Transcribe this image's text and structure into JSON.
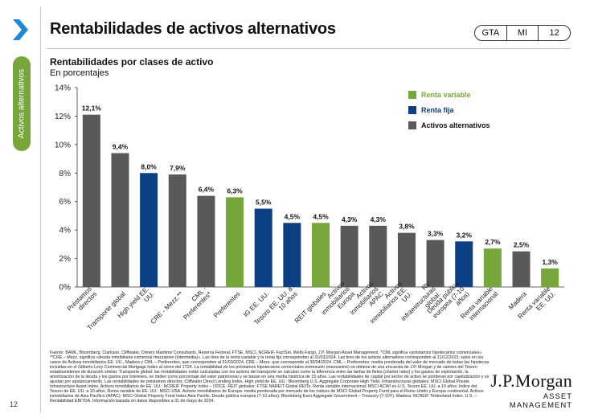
{
  "page": {
    "title": "Rentabilidades de activos alternativos",
    "side_label": "Activos alternativos",
    "page_number": "12",
    "tags": [
      "GTA",
      "MI",
      "12"
    ]
  },
  "chart_data": {
    "type": "bar",
    "title": "Rentabilidades por clases de activo",
    "subtitle": "En porcentajes",
    "ylim": [
      0,
      14
    ],
    "yticks": [
      "0%",
      "2%",
      "4%",
      "6%",
      "8%",
      "10%",
      "12%",
      "14%"
    ],
    "categories": [
      "Préstamos directos",
      "Transporte global",
      "High yield EE. UU.",
      "CRE - Mezz.**",
      "CML - Preferentes*",
      "Preferentes",
      "IG EE. UU.",
      "Tesoro EE. UU. a 10 años",
      "REIT globales",
      "Activos inmobiliarios Europa",
      "Activos inmobiliarios APAC",
      "Activos inmobiliarios EE. UU.",
      "RV infraestructuras global.",
      "Deuda pública europea (7-10 años)",
      "Renta variable internacional",
      "Madera",
      "Renta variable EE. UU."
    ],
    "values": [
      12.1,
      9.4,
      8.0,
      7.9,
      6.4,
      6.3,
      5.5,
      4.5,
      4.5,
      4.3,
      4.3,
      3.8,
      3.3,
      3.2,
      2.7,
      2.5,
      1.3
    ],
    "labels": [
      "12,1%",
      "9,4%",
      "8,0%",
      "7,9%",
      "6,4%",
      "6,3%",
      "5,5%",
      "4,5%",
      "4,5%",
      "4,3%",
      "4,3%",
      "3,8%",
      "3,3%",
      "3,2%",
      "2,7%",
      "2,5%",
      "1,3%"
    ],
    "groups": [
      "alt",
      "alt",
      "fixed",
      "alt",
      "alt",
      "equity",
      "fixed",
      "fixed",
      "equity",
      "alt",
      "alt",
      "alt",
      "alt",
      "fixed",
      "equity",
      "alt",
      "equity"
    ],
    "legend": [
      {
        "key": "equity",
        "label": "Renta variable",
        "color": "#77a73a"
      },
      {
        "key": "fixed",
        "label": "Renta fija",
        "color": "#0d3f85"
      },
      {
        "key": "alt",
        "label": "Activos alternativos",
        "color": "#595959"
      }
    ],
    "grid": false
  },
  "footer": {
    "source": "Fuente: BAML, Bloomberg, Clarkson, Cliffwater, Drewry Maritime Consultants, Reserva Federal, FTSE, MSCI, NCREIF, FactSet, Wells Fargo, J.P. Morgan Asset Management. *CML significa «préstamos hipotecarios comerciales». **CRE – Mezz. significa «deuda inmobiliaria comercial mezzanine (intermedia)». Las tires de la renta variable y la renta fija corresponden al 31/03/2024. Las tires de los activos alternativos corresponden al 31/12/2023, salvo en los casos de Activos inmobiliarios EE. UU., Madera y CML – Preferentes, que corresponden al 31/03/2024. CRE – Mezz. que corresponde al 30/04/2024. CML – Preferentes: media ponderada del valor de mercado de todas las hipotecas incluidas en el Gilberto Levy Commercial Mortgage Index al cierre del 1T24. La rentabilidad de los préstamos hipotecarios comerciales entresuelo (mezzanine) se obtiene de una encuesta de J.P. Morgan y de valores del Tesoro estadounidense de duración similar. Transporte global: las rentabilidades están calculadas con los activos del transporte se calculan como la diferencia entre las tarifas de fletes (charter rates) y los gastos de explotación, la amortización de la deuda y los gastos por intereses, se miden como porcentaje del valor patrimonial y se basan en una media histórica de 15 años. Las rentabilidades de capital por sector de activo se ponderan por capitalización y se ajustan por apalancamiento. Las rentabilidades de préstamos directos: Cliffwater Direct Lending Index. High yield de EE. UU.: Bloomberg U.S. Aggregate Corporate High Yield. Infraestructuras globales: MSCI Global Private Infrastructure Asset Index. Activos inmobiliarios de EE. UU.: NCREIF Property Index – ODCE. REIT globales: FTSE NAREIT Global REITs. Renta variable internacional: MSCI ACWI ex-U.S. Tesoro EE. UU. a 10 años: índice del Tesoro de EE. UU. a 10 años. Renta variable de EE. UU.: MSCI USA. Activos inmobiliarios de Europa: media ponderada por mercado de los índices de MSCI Global Property Fund para el Reino Unido y Europa continental. Activos inmobiliarios de Asia Pacífico (APAC): MSCI Global Property Fund Index Asia Pacific. Deuda pública europea (7-10 años): Bloomberg Euro Aggregate Government – Treasury (7-10Y). Madera: NCREIF Timberland Index. U.S. – Rentabilidad EBITDA. Información basada en datos disponibles a 31 de mayo de 2024.",
    "logo_main": "J.P.Morgan",
    "logo_sub": "ASSET MANAGEMENT"
  }
}
